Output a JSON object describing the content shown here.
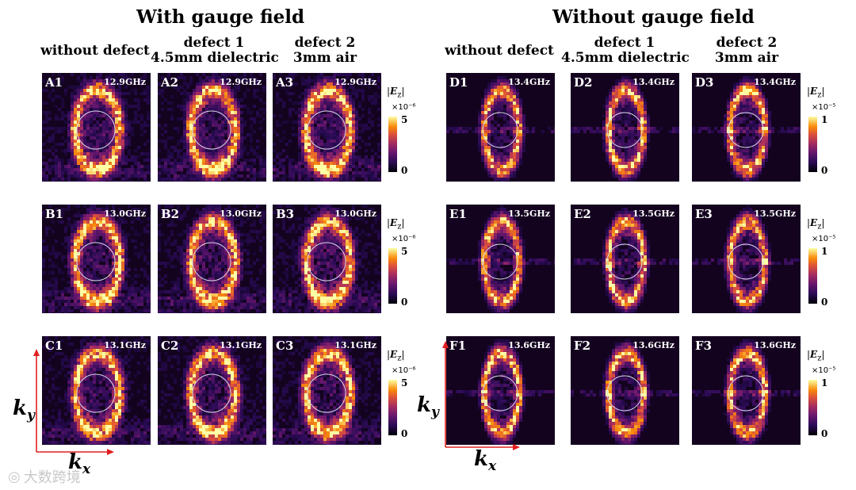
{
  "titles": {
    "left": "With gauge field",
    "right": "Without gauge field"
  },
  "col_headers": {
    "left": [
      {
        "line1": "without defect",
        "line2": ""
      },
      {
        "line1": "defect 1",
        "line2": "4.5mm dielectric"
      },
      {
        "line1": "defect 2",
        "line2": "3mm air"
      }
    ],
    "right": [
      {
        "line1": "without defect",
        "line2": ""
      },
      {
        "line1": "defect 1",
        "line2": "4.5mm dielectric"
      },
      {
        "line1": "defect 2",
        "line2": "3mm air"
      }
    ]
  },
  "panels": {
    "A1": {
      "label": "A1",
      "freq": "12.9GHz"
    },
    "A2": {
      "label": "A2",
      "freq": "12.9GHz"
    },
    "A3": {
      "label": "A3",
      "freq": "12.9GHz"
    },
    "B1": {
      "label": "B1",
      "freq": "13.0GHz"
    },
    "B2": {
      "label": "B2",
      "freq": "13.0GHz"
    },
    "B3": {
      "label": "B3",
      "freq": "13.0GHz"
    },
    "C1": {
      "label": "C1",
      "freq": "13.1GHz"
    },
    "C2": {
      "label": "C2",
      "freq": "13.1GHz"
    },
    "C3": {
      "label": "C3",
      "freq": "13.1GHz"
    },
    "D1": {
      "label": "D1",
      "freq": "13.4GHz"
    },
    "D2": {
      "label": "D2",
      "freq": "13.4GHz"
    },
    "D3": {
      "label": "D3",
      "freq": "13.4GHz"
    },
    "E1": {
      "label": "E1",
      "freq": "13.5GHz"
    },
    "E2": {
      "label": "E2",
      "freq": "13.5GHz"
    },
    "E3": {
      "label": "E3",
      "freq": "13.5GHz"
    },
    "F1": {
      "label": "F1",
      "freq": "13.6GHz"
    },
    "F2": {
      "label": "F2",
      "freq": "13.6GHz"
    },
    "F3": {
      "label": "F3",
      "freq": "13.6GHz"
    }
  },
  "colorbars": {
    "left": {
      "label_prefix": "|",
      "label_var": "E",
      "label_sub": "z",
      "label_suffix": "|",
      "scale": "×10⁻⁶",
      "max": "5",
      "min": "0"
    },
    "right": {
      "label_prefix": "|",
      "label_var": "E",
      "label_sub": "z",
      "label_suffix": "|",
      "scale": "×10⁻⁵",
      "max": "1",
      "min": "0"
    }
  },
  "axes": {
    "x": "k",
    "x_sub": "x",
    "y": "k",
    "y_sub": "y"
  },
  "watermark": "大数跨境",
  "colors": {
    "axis_arrow": "#e02020",
    "ring": "#d8d8e8",
    "panel_bg": "#14031f"
  }
}
